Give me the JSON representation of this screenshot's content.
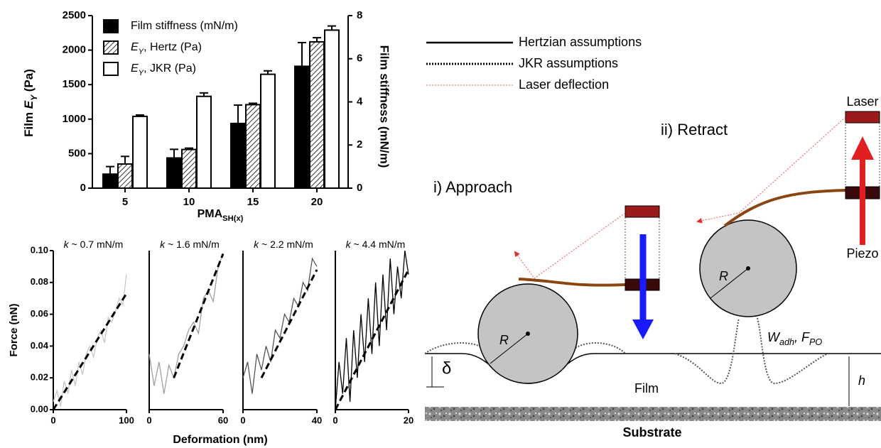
{
  "chart_data": [
    {
      "type": "bar",
      "categories": [
        "5",
        "10",
        "15",
        "20"
      ],
      "x_label": "PMASH(x)",
      "y_label": "Film EY (Pa)",
      "y2_label": "Film stiffness (mN/m)",
      "ylim": [
        0,
        2500
      ],
      "yticks": [
        0,
        500,
        1000,
        1500,
        2000,
        2500
      ],
      "y2lim": [
        0,
        8
      ],
      "y2ticks": [
        0,
        2,
        4,
        6,
        8
      ],
      "series": [
        {
          "name": "Film stiffness (mN/m)",
          "color": "#000000",
          "axis": "y2",
          "values": [
            0.65,
            1.4,
            3.0,
            5.65
          ],
          "errors": [
            0.35,
            0.4,
            0.85,
            1.1
          ]
        },
        {
          "name": "EY, Hertz (Pa)",
          "color": "#ffffff",
          "hatch": true,
          "values": [
            350,
            560,
            1210,
            2120
          ],
          "errors": [
            110,
            20,
            20,
            60
          ]
        },
        {
          "name": "EY, JKR (Pa)",
          "color": "#ffffff",
          "values": [
            1040,
            1330,
            1650,
            2290
          ],
          "errors": [
            20,
            50,
            50,
            60
          ]
        }
      ]
    },
    {
      "type": "line",
      "title": "k ~ 0.7 mN/m",
      "x_label": "Deformation (nm)",
      "y_label": "Force (nN)",
      "xlim": [
        0,
        100
      ],
      "xticks": [
        0,
        100
      ],
      "ylim": [
        0,
        0.1
      ],
      "yticks": [
        {
          "value": 0,
          "label": "0.00"
        },
        {
          "value": 0.02,
          "label": "0.02"
        },
        {
          "value": 0.04,
          "label": "0.04"
        },
        {
          "value": 0.06,
          "label": "0.06"
        },
        {
          "value": 0.08,
          "label": "0.08"
        },
        {
          "value": 0.1,
          "label": "0.10"
        }
      ],
      "series": [
        {
          "color": "#c8c8c8",
          "x": [
            0,
            5,
            10,
            15,
            20,
            25,
            30,
            35,
            40,
            45,
            50,
            55,
            60,
            65,
            70,
            75,
            80,
            85,
            90,
            95,
            100
          ],
          "values": [
            0.005,
            0.012,
            0.002,
            0.018,
            0.01,
            0.025,
            0.015,
            0.03,
            0.022,
            0.035,
            0.04,
            0.033,
            0.045,
            0.05,
            0.042,
            0.058,
            0.055,
            0.062,
            0.07,
            0.066,
            0.085
          ]
        },
        {
          "color": "#000000",
          "dashed": true,
          "x": [
            0,
            100
          ],
          "values": [
            0,
            0.073
          ]
        }
      ]
    },
    {
      "type": "line",
      "title": "k ~ 1.6 mN/m",
      "xlim": [
        0,
        60
      ],
      "xticks": [
        0,
        60
      ],
      "ylim": [
        0,
        0.1
      ],
      "series": [
        {
          "color": "#a0a0a0",
          "x": [
            0,
            4,
            8,
            12,
            16,
            20,
            24,
            28,
            32,
            36,
            40,
            44,
            48,
            52,
            56,
            60
          ],
          "values": [
            0.035,
            0.015,
            0.03,
            0.01,
            0.028,
            0.02,
            0.035,
            0.04,
            0.05,
            0.055,
            0.048,
            0.07,
            0.075,
            0.068,
            0.09,
            0.098
          ]
        },
        {
          "color": "#000000",
          "dashed": true,
          "x": [
            20,
            60
          ],
          "values": [
            0.02,
            0.098
          ]
        }
      ]
    },
    {
      "type": "line",
      "title": "k ~ 2.2 mN/m",
      "xlim": [
        0,
        40
      ],
      "xticks": [
        0,
        40
      ],
      "ylim": [
        0,
        0.1
      ],
      "series": [
        {
          "color": "#555555",
          "x": [
            0,
            2.5,
            5,
            7.5,
            10,
            12.5,
            15,
            17.5,
            20,
            22.5,
            25,
            27.5,
            30,
            32.5,
            35,
            37.5,
            40
          ],
          "values": [
            0.02,
            0.03,
            0.01,
            0.035,
            0.025,
            0.04,
            0.03,
            0.05,
            0.045,
            0.06,
            0.055,
            0.07,
            0.065,
            0.08,
            0.075,
            0.095,
            0.09
          ]
        },
        {
          "color": "#000000",
          "dashed": true,
          "x": [
            10,
            40
          ],
          "values": [
            0.02,
            0.088
          ]
        }
      ]
    },
    {
      "type": "line",
      "title": "k ~ 4.4 mN/m",
      "xlim": [
        0,
        20
      ],
      "xticks": [
        0,
        20
      ],
      "ylim": [
        0,
        0.1
      ],
      "series": [
        {
          "color": "#000000",
          "x": [
            0,
            1,
            2,
            3,
            4,
            5,
            6,
            7,
            8,
            9,
            10,
            11,
            12,
            13,
            14,
            15,
            16,
            17,
            18,
            19,
            20
          ],
          "values": [
            0,
            0.03,
            0.01,
            0.045,
            0.005,
            0.05,
            0.02,
            0.06,
            0.03,
            0.07,
            0.035,
            0.08,
            0.04,
            0.085,
            0.05,
            0.095,
            0.06,
            0.09,
            0.07,
            0.1,
            0.085
          ]
        },
        {
          "color": "#000000",
          "dashed": true,
          "x": [
            0,
            20
          ],
          "values": [
            0,
            0.088
          ]
        }
      ]
    }
  ],
  "diagram": {
    "legend": [
      "Hertzian assumptions",
      "JKR assumptions",
      "Laser deflection"
    ],
    "retract": "ii) Retract",
    "approach": "i) Approach",
    "laser": "Laser",
    "piezo": "Piezo",
    "radius": "R",
    "adhesion": "Wadh, FPO",
    "indentation": "δ",
    "thickness": "h",
    "film": "Film",
    "substrate": "Substrate"
  }
}
